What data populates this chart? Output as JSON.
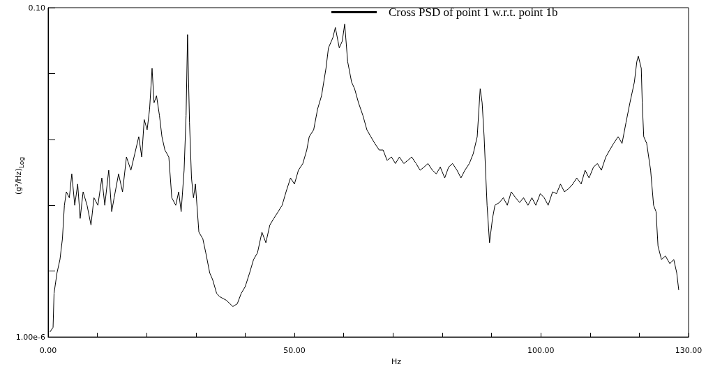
{
  "chart_data": {
    "type": "line",
    "xlabel": "Hz",
    "ylabel": "(g²/Hz)$_{Log}$",
    "log": "y",
    "grid": false,
    "legend": "top",
    "marker": "none",
    "line_style": "solid",
    "xlim": [
      0,
      130
    ],
    "xticks": [
      {
        "value": 0,
        "label": "0.00"
      },
      {
        "value": 10,
        "label": null
      },
      {
        "value": 20,
        "label": null
      },
      {
        "value": 30,
        "label": null
      },
      {
        "value": 40,
        "label": null
      },
      {
        "value": 50,
        "label": "50.00"
      },
      {
        "value": 60,
        "label": null
      },
      {
        "value": 70,
        "label": null
      },
      {
        "value": 80,
        "label": null
      },
      {
        "value": 90,
        "label": null
      },
      {
        "value": 100,
        "label": "100.00"
      },
      {
        "value": 110,
        "label": null
      },
      {
        "value": 120,
        "label": null
      },
      {
        "value": 130,
        "label": "130.00"
      }
    ],
    "ylim": [
      1e-06,
      0.1
    ],
    "yticks": [
      {
        "value": 0.1,
        "label": "0.10"
      },
      {
        "value": 0.01,
        "label": null
      },
      {
        "value": 0.001,
        "label": null
      },
      {
        "value": 0.0001,
        "label": null
      },
      {
        "value": 1e-05,
        "label": null
      },
      {
        "value": 1e-06,
        "label": "1.00e-6"
      }
    ],
    "series": [
      {
        "name": "Cross PSD of point 1 w.r.t. point 1b",
        "color": "#000000",
        "x": [
          0.4,
          1.0,
          1.2,
          1.8,
          2.4,
          2.9,
          3.3,
          3.7,
          4.3,
          4.8,
          5.4,
          6.0,
          6.5,
          7.1,
          7.9,
          8.7,
          9.3,
          10.1,
          10.9,
          11.5,
          12.3,
          12.9,
          13.4,
          14.3,
          15.1,
          15.9,
          16.8,
          17.6,
          18.4,
          19.0,
          19.5,
          20.1,
          20.6,
          21.1,
          21.5,
          22.0,
          22.6,
          23.1,
          23.7,
          24.5,
          25.1,
          25.9,
          26.5,
          27.0,
          27.6,
          28.0,
          28.3,
          28.7,
          29.1,
          29.5,
          29.9,
          30.6,
          31.4,
          32.0,
          32.8,
          33.4,
          34.2,
          34.8,
          36.2,
          37.5,
          38.4,
          39.2,
          40.0,
          40.9,
          41.7,
          42.5,
          43.4,
          44.2,
          45.0,
          45.8,
          46.7,
          47.5,
          48.3,
          49.2,
          50.0,
          50.8,
          51.7,
          52.5,
          53.0,
          53.9,
          54.7,
          55.5,
          56.4,
          56.9,
          57.8,
          58.3,
          59.1,
          59.7,
          60.2,
          60.8,
          61.6,
          62.2,
          63.0,
          63.9,
          64.7,
          65.5,
          66.3,
          67.2,
          68.0,
          68.8,
          69.7,
          70.5,
          71.3,
          72.2,
          73.0,
          73.8,
          74.7,
          75.5,
          76.3,
          77.1,
          78.0,
          78.8,
          79.6,
          80.5,
          81.3,
          82.1,
          83.0,
          83.8,
          84.6,
          85.5,
          86.3,
          87.1,
          87.7,
          88.1,
          88.5,
          89.1,
          89.6,
          90.2,
          90.7,
          91.6,
          92.4,
          93.2,
          94.0,
          94.9,
          95.7,
          96.5,
          97.4,
          98.2,
          99.0,
          99.9,
          100.7,
          101.5,
          102.4,
          103.2,
          104.0,
          104.8,
          105.7,
          106.5,
          107.3,
          108.2,
          109.0,
          109.8,
          110.7,
          111.5,
          112.3,
          113.2,
          114.0,
          114.8,
          115.7,
          116.5,
          117.3,
          118.1,
          119.0,
          119.5,
          119.8,
          120.4,
          120.6,
          120.9,
          121.5,
          122.3,
          122.9,
          123.4,
          123.8,
          124.5,
          125.3,
          126.2,
          127.0,
          127.6,
          128.0
        ],
        "values": [
          1.2e-06,
          1.4e-06,
          4.6e-06,
          9.4e-06,
          1.5e-05,
          3.1e-05,
          0.0001,
          0.00016,
          0.00013,
          0.0003,
          0.0001,
          0.00021,
          6.3e-05,
          0.00016,
          0.0001,
          5e-05,
          0.00013,
          0.0001,
          0.00026,
          0.0001,
          0.00034,
          8e-05,
          0.00013,
          0.0003,
          0.00016,
          0.00054,
          0.00034,
          0.00061,
          0.0011,
          0.00054,
          0.002,
          0.0014,
          0.0029,
          0.012,
          0.0036,
          0.0046,
          0.0023,
          0.0011,
          0.00069,
          0.00054,
          0.00013,
          0.0001,
          0.00016,
          8e-05,
          0.00034,
          0.0023,
          0.039,
          0.0018,
          0.00026,
          0.00013,
          0.00021,
          3.9e-05,
          3.1e-05,
          1.9e-05,
          9.4e-06,
          7.4e-06,
          4.6e-06,
          4.1e-06,
          3.6e-06,
          2.9e-06,
          3.2e-06,
          4.6e-06,
          5.8e-06,
          9.4e-06,
          1.5e-05,
          1.9e-05,
          3.9e-05,
          2.7e-05,
          5e-05,
          6.3e-05,
          8e-05,
          0.0001,
          0.00016,
          0.00026,
          0.00021,
          0.00034,
          0.00043,
          0.00069,
          0.0011,
          0.0014,
          0.0029,
          0.0046,
          0.012,
          0.0245,
          0.035,
          0.05,
          0.0245,
          0.031,
          0.0565,
          0.0152,
          0.0074,
          0.0059,
          0.0036,
          0.0023,
          0.0014,
          0.0011,
          0.00087,
          0.00069,
          0.00069,
          0.00048,
          0.00054,
          0.00043,
          0.00054,
          0.00043,
          0.00048,
          0.00054,
          0.00043,
          0.00034,
          0.00038,
          0.00043,
          0.00034,
          0.0003,
          0.00038,
          0.00026,
          0.00038,
          0.00043,
          0.00034,
          0.00026,
          0.00034,
          0.00043,
          0.00061,
          0.0011,
          0.0059,
          0.0036,
          0.0011,
          0.0001,
          2.7e-05,
          6.3e-05,
          0.0001,
          0.00011,
          0.00013,
          0.0001,
          0.00016,
          0.00013,
          0.00011,
          0.00013,
          0.0001,
          0.00013,
          0.0001,
          0.00015,
          0.00013,
          0.0001,
          0.00016,
          0.00015,
          0.00021,
          0.00016,
          0.00018,
          0.00021,
          0.00026,
          0.00021,
          0.00034,
          0.00026,
          0.00038,
          0.00043,
          0.00034,
          0.00054,
          0.00069,
          0.00087,
          0.0011,
          0.00087,
          0.0018,
          0.0036,
          0.0074,
          0.0152,
          0.0184,
          0.012,
          0.0036,
          0.0011,
          0.00087,
          0.00034,
          0.0001,
          8e-05,
          2.4e-05,
          1.5e-05,
          1.7e-05,
          1.3e-05,
          1.5e-05,
          9.4e-06,
          5.2e-06
        ]
      }
    ]
  }
}
